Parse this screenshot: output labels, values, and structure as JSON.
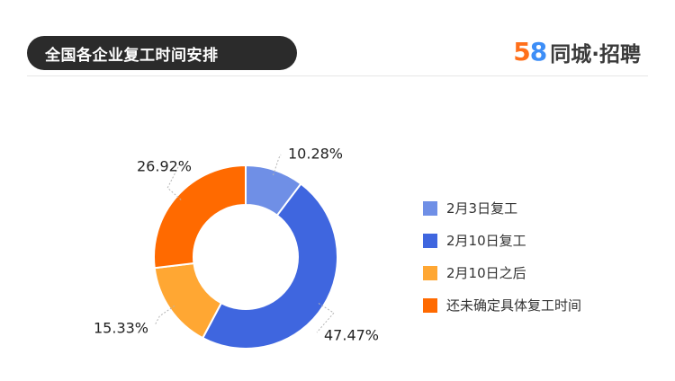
{
  "header": {
    "title": "全国各企业复工时间安排",
    "brand_num_1": "5",
    "brand_num_2": "8",
    "brand_text": "同城·招聘"
  },
  "chart_data": {
    "type": "pie",
    "variant": "donut",
    "categories": [
      "2月3日复工",
      "2月10日复工",
      "2月10日之后",
      "还未确定具体复工时间"
    ],
    "values": [
      10.28,
      47.47,
      15.33,
      26.92
    ],
    "labels": [
      "10.28%",
      "47.47%",
      "15.33%",
      "26.92%"
    ],
    "colors": [
      "#6f8fe6",
      "#3f66df",
      "#ffa733",
      "#ff6a00"
    ],
    "legend_position": "right"
  }
}
